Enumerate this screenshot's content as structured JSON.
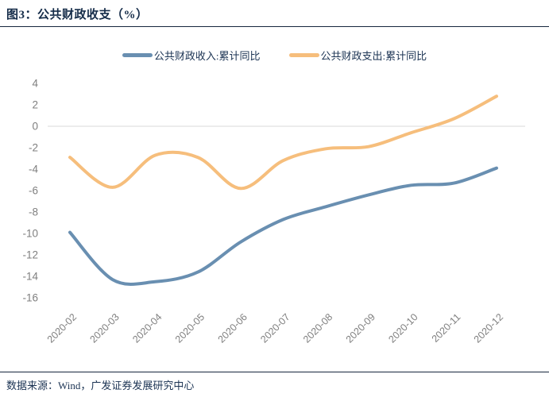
{
  "header": {
    "title": "图3：公共财政收支（%）"
  },
  "chart_data": {
    "type": "line",
    "line_style": "smooth",
    "categories": [
      "2020-02",
      "2020-03",
      "2020-04",
      "2020-05",
      "2020-06",
      "2020-07",
      "2020-08",
      "2020-09",
      "2020-10",
      "2020-11",
      "2020-12"
    ],
    "series": [
      {
        "name": "公共财政收入:累计同比",
        "color": "#698FB1",
        "values": [
          -9.9,
          -14.3,
          -14.5,
          -13.6,
          -10.8,
          -8.7,
          -7.5,
          -6.4,
          -5.5,
          -5.3,
          -3.9
        ]
      },
      {
        "name": "公共财政支出:累计同比",
        "color": "#F6BE7C",
        "values": [
          -2.9,
          -5.7,
          -2.7,
          -2.9,
          -5.8,
          -3.2,
          -2.1,
          -1.9,
          -0.6,
          0.7,
          2.8
        ]
      }
    ],
    "yticks": [
      4,
      2,
      0,
      -2,
      -4,
      -6,
      -8,
      -10,
      -12,
      -14,
      -16
    ],
    "ylim": [
      -16,
      4
    ],
    "grid": "horizontal-line-at-zero-only",
    "legend_position": "top-center",
    "axis_label_color": "#7F7F7F",
    "gridline_color": "#D9D9D9"
  },
  "footer": {
    "source": "数据来源：Wind，广发证券发展研究中心"
  }
}
